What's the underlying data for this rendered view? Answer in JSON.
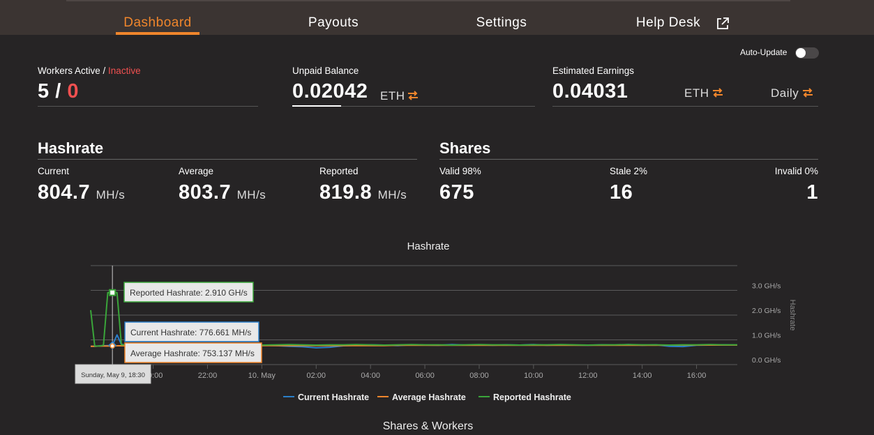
{
  "nav": {
    "items": [
      "Dashboard",
      "Payouts",
      "Settings",
      "Help Desk"
    ]
  },
  "auto_update": {
    "label": "Auto-Update"
  },
  "workers": {
    "label_active": "Workers Active /",
    "label_inactive": "Inactive",
    "active": 5,
    "separator": "/",
    "inactive": 0
  },
  "unpaid": {
    "label": "Unpaid Balance",
    "value": "0.02042",
    "unit": "ETH"
  },
  "earnings": {
    "label": "Estimated Earnings",
    "value": "0.04031",
    "unit": "ETH",
    "period": "Daily"
  },
  "hashrate": {
    "title": "Hashrate",
    "items": [
      {
        "label": "Current",
        "value": 804.7,
        "unit": "MH/s"
      },
      {
        "label": "Average",
        "value": 803.7,
        "unit": "MH/s"
      },
      {
        "label": "Reported",
        "value": 819.8,
        "unit": "MH/s"
      }
    ]
  },
  "shares": {
    "title": "Shares",
    "items": [
      {
        "label": "Valid 98%",
        "value": 675
      },
      {
        "label": "Stale 2%",
        "value": 16
      },
      {
        "label": "Invalid 0%",
        "value": 1
      }
    ]
  },
  "chart": {
    "type": "line",
    "title": "Hashrate",
    "y_label": "Hashrate",
    "x": [
      17.7,
      17.85,
      18,
      18.17,
      18.33,
      18.5,
      18.67,
      18.83,
      19,
      19.5,
      20,
      20.5,
      21,
      21.5,
      22,
      22.5,
      23,
      23.5,
      24,
      24.5,
      25,
      25.5,
      26,
      26.5,
      27,
      27.5,
      28,
      28.5,
      29,
      29.5,
      30,
      30.5,
      31,
      31.5,
      32,
      32.5,
      33,
      33.5,
      34,
      34.5,
      35,
      35.5,
      36,
      36.5,
      37,
      37.5,
      38,
      38.5,
      39,
      39.5,
      40,
      40.5,
      41,
      41.5
    ],
    "xlim": [
      17.7,
      41.5
    ],
    "xticks": [
      {
        "value": 20,
        "label": "20:00"
      },
      {
        "value": 22,
        "label": "22:00"
      },
      {
        "value": 24,
        "label": "10. May"
      },
      {
        "value": 26,
        "label": "02:00"
      },
      {
        "value": 28,
        "label": "04:00"
      },
      {
        "value": 30,
        "label": "06:00"
      },
      {
        "value": 32,
        "label": "08:00"
      },
      {
        "value": 34,
        "label": "10:00"
      },
      {
        "value": 36,
        "label": "12:00"
      },
      {
        "value": 38,
        "label": "14:00"
      },
      {
        "value": 40,
        "label": "16:00"
      }
    ],
    "ylim": [
      0,
      4
    ],
    "yticks": [
      {
        "value": 0,
        "label": "0.0 GH/s"
      },
      {
        "value": 1,
        "label": "1.0 GH/s"
      },
      {
        "value": 2,
        "label": "2.0 GH/s"
      },
      {
        "value": 3,
        "label": "3.0 GH/s"
      }
    ],
    "grid": true,
    "series": [
      {
        "name": "Current Hashrate",
        "color": "#2b7fc9",
        "values": [
          0.74,
          0.74,
          0.75,
          0.76,
          0.77,
          0.777,
          1.2,
          0.82,
          0.79,
          0.8,
          0.78,
          0.81,
          0.79,
          0.8,
          0.78,
          0.82,
          0.79,
          0.8,
          0.78,
          0.77,
          0.74,
          0.72,
          0.68,
          0.7,
          0.76,
          0.78,
          0.8,
          0.79,
          0.77,
          0.8,
          0.79,
          0.78,
          0.81,
          0.79,
          0.8,
          0.78,
          0.8,
          0.79,
          0.81,
          0.78,
          0.8,
          0.79,
          0.78,
          0.8,
          0.79,
          0.81,
          0.78,
          0.8,
          0.74,
          0.73,
          0.78,
          0.79,
          0.8,
          0.79
        ]
      },
      {
        "name": "Average Hashrate",
        "color": "#f0862c",
        "values": [
          0.74,
          0.74,
          0.75,
          0.75,
          0.75,
          0.753,
          0.76,
          0.76,
          0.76,
          0.76,
          0.76,
          0.76,
          0.76,
          0.76,
          0.76,
          0.76,
          0.76,
          0.76,
          0.77,
          0.77,
          0.77,
          0.77,
          0.77,
          0.77,
          0.77,
          0.77,
          0.77,
          0.77,
          0.78,
          0.78,
          0.78,
          0.78,
          0.78,
          0.78,
          0.78,
          0.78,
          0.78,
          0.78,
          0.78,
          0.78,
          0.78,
          0.78,
          0.78,
          0.78,
          0.78,
          0.78,
          0.78,
          0.78,
          0.79,
          0.79,
          0.79,
          0.79,
          0.79,
          0.79
        ]
      },
      {
        "name": "Reported Hashrate",
        "color": "#3aa53a",
        "values": [
          2.2,
          0.75,
          0.75,
          0.78,
          2.91,
          2.91,
          2.91,
          0.8,
          0.8,
          0.81,
          0.79,
          0.8,
          0.82,
          0.8,
          0.79,
          0.81,
          0.8,
          0.8,
          0.79,
          0.8,
          0.81,
          0.8,
          0.79,
          0.8,
          0.8,
          0.81,
          0.8,
          0.79,
          0.8,
          0.81,
          0.8,
          0.8,
          0.79,
          0.8,
          0.81,
          0.8,
          0.8,
          0.79,
          0.8,
          0.8,
          0.81,
          0.8,
          0.79,
          0.8,
          0.8,
          0.81,
          0.8,
          0.8,
          0.79,
          0.8,
          0.8,
          0.81,
          0.8,
          0.8
        ]
      }
    ],
    "tooltip": {
      "date": "Sunday, May 9, 18:30",
      "point": 5,
      "lines": [
        "Reported Hashrate: 2.910 GH/s",
        "Current Hashrate: 776.661 MH/s",
        "Average Hashrate: 753.137 MH/s"
      ]
    }
  },
  "next_section": "Shares & Workers"
}
